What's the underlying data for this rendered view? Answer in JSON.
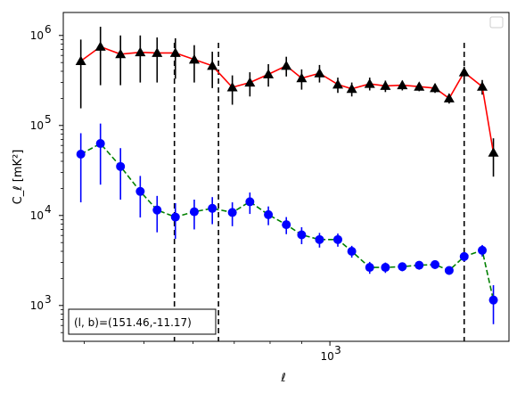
{
  "chart_data": {
    "type": "line",
    "xlabel": "ℓ",
    "ylabel": "C_ℓ [mK²]",
    "x_scale": "log",
    "y_scale": "log",
    "xlim": [
      370,
      1950
    ],
    "ylim": [
      400,
      1800000
    ],
    "x_ticks": [
      {
        "value": 1000,
        "base": "10",
        "exp": "3"
      }
    ],
    "y_ticks": [
      {
        "value": 1000,
        "base": "10",
        "exp": "3"
      },
      {
        "value": 10000,
        "base": "10",
        "exp": "4"
      },
      {
        "value": 100000,
        "base": "10",
        "exp": "5"
      },
      {
        "value": 1000000,
        "base": "10",
        "exp": "6"
      }
    ],
    "legend_position": "top-right",
    "vlines": [
      {
        "x": 560
      },
      {
        "x": 660
      },
      {
        "x": 1650
      }
    ],
    "annotation": "(l, b)=(151.46,-11.17)",
    "series": [
      {
        "marker": "triangle",
        "marker_color": "#000000",
        "line_color": "#ff0000",
        "line_style": "solid",
        "points": [
          {
            "x": 395,
            "y": 520000,
            "lo": 155000,
            "hi": 900000
          },
          {
            "x": 425,
            "y": 750000,
            "lo": 280000,
            "hi": 1250000
          },
          {
            "x": 458,
            "y": 620000,
            "lo": 280000,
            "hi": 1000000
          },
          {
            "x": 493,
            "y": 650000,
            "lo": 300000,
            "hi": 1000000
          },
          {
            "x": 525,
            "y": 640000,
            "lo": 300000,
            "hi": 950000
          },
          {
            "x": 562,
            "y": 640000,
            "lo": 330000,
            "hi": 930000
          },
          {
            "x": 603,
            "y": 540000,
            "lo": 300000,
            "hi": 780000
          },
          {
            "x": 645,
            "y": 460000,
            "lo": 260000,
            "hi": 660000
          },
          {
            "x": 695,
            "y": 265000,
            "lo": 170000,
            "hi": 360000
          },
          {
            "x": 742,
            "y": 300000,
            "lo": 210000,
            "hi": 390000
          },
          {
            "x": 795,
            "y": 370000,
            "lo": 270000,
            "hi": 480000
          },
          {
            "x": 850,
            "y": 460000,
            "lo": 350000,
            "hi": 580000
          },
          {
            "x": 900,
            "y": 335000,
            "lo": 250000,
            "hi": 420000
          },
          {
            "x": 962,
            "y": 380000,
            "lo": 300000,
            "hi": 470000
          },
          {
            "x": 1030,
            "y": 285000,
            "lo": 230000,
            "hi": 340000
          },
          {
            "x": 1085,
            "y": 255000,
            "lo": 210000,
            "hi": 300000
          },
          {
            "x": 1160,
            "y": 290000,
            "lo": 245000,
            "hi": 340000
          },
          {
            "x": 1230,
            "y": 275000,
            "lo": 235000,
            "hi": 315000
          },
          {
            "x": 1310,
            "y": 280000,
            "lo": 245000,
            "hi": 315000
          },
          {
            "x": 1395,
            "y": 270000,
            "lo": 240000,
            "hi": 300000
          },
          {
            "x": 1480,
            "y": 260000,
            "lo": 230000,
            "hi": 290000
          },
          {
            "x": 1560,
            "y": 200000,
            "lo": 175000,
            "hi": 225000
          },
          {
            "x": 1650,
            "y": 390000,
            "lo": 330000,
            "hi": 450000
          },
          {
            "x": 1765,
            "y": 270000,
            "lo": 220000,
            "hi": 320000
          },
          {
            "x": 1840,
            "y": 50000,
            "lo": 27000,
            "hi": 72000
          }
        ]
      },
      {
        "marker": "circle",
        "marker_color": "#0000ff",
        "line_color": "#008000",
        "line_style": "dashed",
        "points": [
          {
            "x": 395,
            "y": 48000,
            "lo": 14000,
            "hi": 82000
          },
          {
            "x": 425,
            "y": 63000,
            "lo": 22000,
            "hi": 105000
          },
          {
            "x": 458,
            "y": 35000,
            "lo": 15000,
            "hi": 56000
          },
          {
            "x": 493,
            "y": 18500,
            "lo": 9500,
            "hi": 27500
          },
          {
            "x": 525,
            "y": 11500,
            "lo": 6500,
            "hi": 16500
          },
          {
            "x": 562,
            "y": 9600,
            "lo": 5500,
            "hi": 13700
          },
          {
            "x": 603,
            "y": 11000,
            "lo": 7000,
            "hi": 15000
          },
          {
            "x": 645,
            "y": 12000,
            "lo": 8000,
            "hi": 16000
          },
          {
            "x": 695,
            "y": 10800,
            "lo": 7600,
            "hi": 14000
          },
          {
            "x": 742,
            "y": 14200,
            "lo": 10400,
            "hi": 18000
          },
          {
            "x": 795,
            "y": 10200,
            "lo": 7800,
            "hi": 12600
          },
          {
            "x": 850,
            "y": 7900,
            "lo": 6200,
            "hi": 9600
          },
          {
            "x": 900,
            "y": 6100,
            "lo": 4800,
            "hi": 7400
          },
          {
            "x": 962,
            "y": 5400,
            "lo": 4400,
            "hi": 6400
          },
          {
            "x": 1030,
            "y": 5400,
            "lo": 4500,
            "hi": 6300
          },
          {
            "x": 1085,
            "y": 4000,
            "lo": 3400,
            "hi": 4600
          },
          {
            "x": 1160,
            "y": 2650,
            "lo": 2250,
            "hi": 3050
          },
          {
            "x": 1230,
            "y": 2650,
            "lo": 2300,
            "hi": 3000
          },
          {
            "x": 1310,
            "y": 2700,
            "lo": 2400,
            "hi": 3000
          },
          {
            "x": 1395,
            "y": 2800,
            "lo": 2500,
            "hi": 3100
          },
          {
            "x": 1480,
            "y": 2850,
            "lo": 2550,
            "hi": 3150
          },
          {
            "x": 1560,
            "y": 2450,
            "lo": 2200,
            "hi": 2700
          },
          {
            "x": 1650,
            "y": 3500,
            "lo": 3100,
            "hi": 3900
          },
          {
            "x": 1765,
            "y": 4100,
            "lo": 3500,
            "hi": 4700
          },
          {
            "x": 1840,
            "y": 1150,
            "lo": 620,
            "hi": 1680
          }
        ]
      }
    ]
  }
}
